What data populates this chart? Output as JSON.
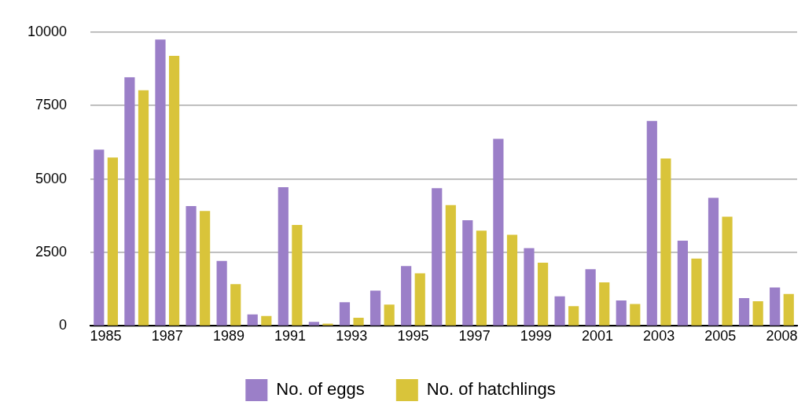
{
  "chart_data": {
    "type": "bar",
    "categories": [
      "1985",
      null,
      "1987",
      null,
      "1989",
      null,
      "1991",
      null,
      "1993",
      null,
      "1995",
      null,
      "1997",
      null,
      "1999",
      null,
      "2001",
      null,
      "2003",
      null,
      "2005",
      null,
      "2008"
    ],
    "series": [
      {
        "name": "No. of eggs",
        "color": "#9b7fc8",
        "values": [
          6000,
          8460,
          9750,
          4080,
          2210,
          390,
          4720,
          140,
          810,
          1200,
          2040,
          4690,
          3600,
          6370,
          2650,
          1010,
          1930,
          870,
          6980,
          2900,
          4360,
          950,
          1310
        ]
      },
      {
        "name": "No. of hatchlings",
        "color": "#d9c43a",
        "values": [
          5730,
          8020,
          9190,
          3910,
          1420,
          340,
          3440,
          80,
          280,
          730,
          1790,
          4110,
          3240,
          3100,
          2150,
          670,
          1480,
          750,
          5700,
          2290,
          3720,
          840,
          1090
        ]
      }
    ],
    "ylim": [
      0,
      10000
    ],
    "yticks": [
      0,
      2500,
      5000,
      7500,
      10000
    ],
    "grid": "y",
    "legend": "bottom"
  }
}
